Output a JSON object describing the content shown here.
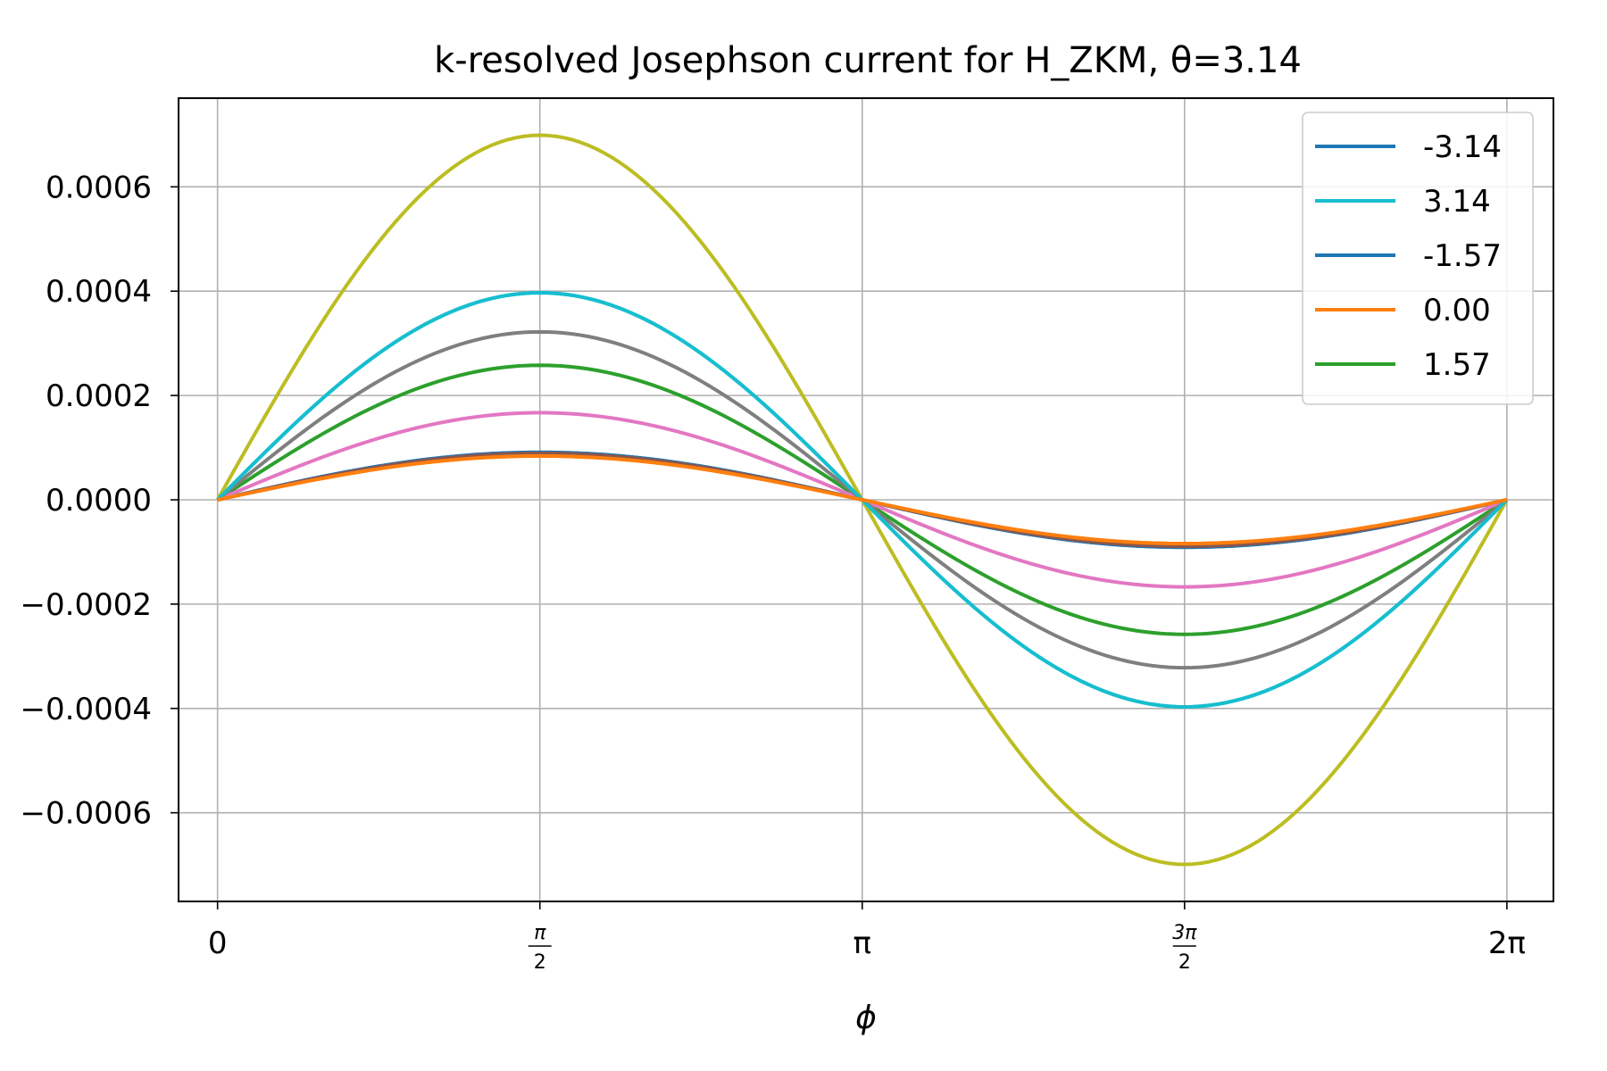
{
  "chart_data": {
    "type": "line",
    "title": "k-resolved Josephson current for H_ZKM, θ=3.14",
    "xlabel": "ϕ",
    "ylabel": "",
    "xlim": [
      -0.19,
      6.51
    ],
    "ylim": [
      -0.00077,
      0.00077
    ],
    "grid": true,
    "legend_placement": "top-right",
    "x_ticks": [
      {
        "value": 0,
        "label": "0",
        "frac": false
      },
      {
        "value": 1.5708,
        "num": "π",
        "den": "2",
        "frac": true
      },
      {
        "value": 3.1416,
        "label": "π",
        "frac": false
      },
      {
        "value": 4.7124,
        "num": "3π",
        "den": "2",
        "frac": true
      },
      {
        "value": 6.2832,
        "label": "2π",
        "frac": false
      }
    ],
    "y_ticks": [
      {
        "value": 0.0006,
        "label": "0.0006"
      },
      {
        "value": 0.0004,
        "label": "0.0004"
      },
      {
        "value": 0.0002,
        "label": "0.0002"
      },
      {
        "value": 0.0,
        "label": "0.0000"
      },
      {
        "value": -0.0002,
        "label": "−0.0002"
      },
      {
        "value": -0.0004,
        "label": "−0.0004"
      },
      {
        "value": -0.0006,
        "label": "−0.0006"
      }
    ],
    "x_range": [
      0,
      6.2832
    ],
    "series": [
      {
        "name": "-3.14",
        "color": "#1f77b4",
        "amplitude": 9.1e-05,
        "legend": true
      },
      {
        "name": "3.14",
        "color": "#17becf",
        "amplitude": 0.000397,
        "legend": true
      },
      {
        "name": "-1.57",
        "color": "#1f77b4",
        "amplitude": 9.1e-05,
        "legend": true
      },
      {
        "name": "0.00",
        "color": "#ff7f0e",
        "amplitude": 8.4e-05,
        "legend": true
      },
      {
        "name": "1.57",
        "color": "#2ca02c",
        "amplitude": 0.000258,
        "legend": true
      },
      {
        "name": "",
        "color": "#8c564b",
        "amplitude": 8.9e-05,
        "legend": false
      },
      {
        "name": "",
        "color": "#e377c2",
        "amplitude": 0.000167,
        "legend": false
      },
      {
        "name": "",
        "color": "#7f7f7f",
        "amplitude": 0.000322,
        "legend": false
      },
      {
        "name": "",
        "color": "#bcbd22",
        "amplitude": 0.000699,
        "legend": false
      },
      {
        "name": "",
        "color": "#17becf",
        "amplitude": 0.000397,
        "legend": false
      },
      {
        "name": "",
        "color": "#ff7f0e",
        "amplitude": 8.4e-05,
        "legend": false
      }
    ]
  }
}
